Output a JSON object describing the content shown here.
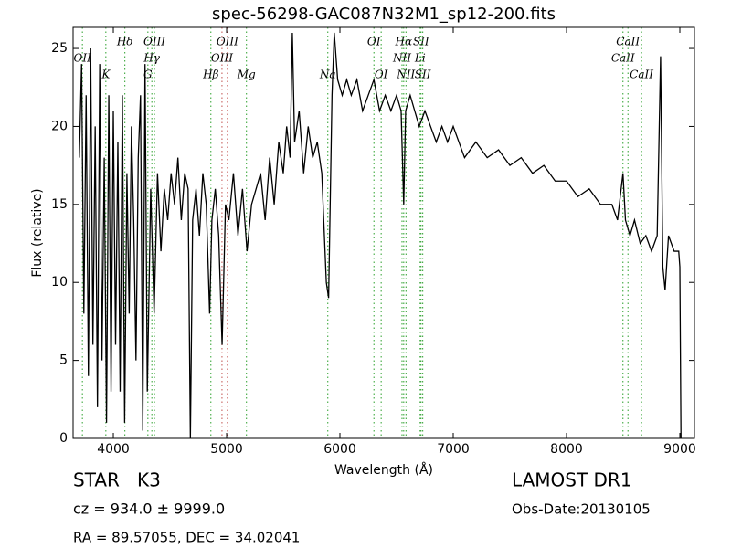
{
  "chart_data": {
    "type": "line",
    "title": "spec-56298-GAC087N32M1_sp12-200.fits",
    "xlabel": "Wavelength (Å)",
    "ylabel": "Flux (relative)",
    "xlim": [
      3645,
      9129
    ],
    "ylim": [
      0,
      26.35
    ],
    "xticks": [
      4000,
      5000,
      6000,
      7000,
      8000,
      9000
    ],
    "yticks": [
      0,
      5,
      10,
      15,
      20,
      25
    ],
    "series": [
      {
        "color": "#000000",
        "x": [
          3700,
          3720,
          3740,
          3760,
          3780,
          3800,
          3820,
          3840,
          3860,
          3880,
          3900,
          3920,
          3940,
          3960,
          3980,
          4000,
          4020,
          4040,
          4060,
          4080,
          4100,
          4120,
          4140,
          4160,
          4180,
          4200,
          4220,
          4240,
          4260,
          4280,
          4300,
          4330,
          4360,
          4390,
          4420,
          4450,
          4480,
          4510,
          4540,
          4570,
          4600,
          4630,
          4660,
          4680,
          4700,
          4730,
          4760,
          4790,
          4820,
          4850,
          4870,
          4900,
          4930,
          4960,
          4990,
          5020,
          5060,
          5100,
          5140,
          5180,
          5220,
          5260,
          5300,
          5340,
          5380,
          5420,
          5460,
          5500,
          5530,
          5560,
          5580,
          5600,
          5640,
          5680,
          5720,
          5760,
          5800,
          5840,
          5880,
          5900,
          5930,
          5950,
          5980,
          6020,
          6060,
          6100,
          6150,
          6200,
          6250,
          6300,
          6350,
          6400,
          6450,
          6500,
          6540,
          6563,
          6580,
          6620,
          6660,
          6700,
          6750,
          6800,
          6850,
          6900,
          6950,
          7000,
          7100,
          7200,
          7300,
          7400,
          7500,
          7600,
          7700,
          7800,
          7900,
          8000,
          8100,
          8200,
          8300,
          8400,
          8450,
          8498,
          8520,
          8560,
          8600,
          8650,
          8700,
          8750,
          8800,
          8830,
          8850,
          8870,
          8900,
          8950,
          8990,
          9000,
          9010
        ],
        "values": [
          18,
          24,
          8,
          22,
          4,
          25,
          6,
          20,
          2,
          24,
          5,
          18,
          1,
          22,
          3,
          21,
          6,
          19,
          3,
          22,
          1,
          17,
          8,
          20,
          14,
          5,
          18,
          22,
          0.5,
          24,
          3,
          16,
          8,
          17,
          12,
          16,
          14,
          17,
          15,
          18,
          14,
          17,
          16,
          0,
          14,
          16,
          13,
          17,
          15,
          8,
          14,
          16,
          13,
          6,
          15,
          14,
          17,
          13,
          16,
          12,
          15,
          16,
          17,
          14,
          18,
          15,
          19,
          17,
          20,
          18,
          26,
          19,
          21,
          17,
          20,
          18,
          19,
          17,
          10,
          9,
          22,
          26,
          23,
          22,
          23,
          22,
          23,
          21,
          22,
          23,
          21,
          22,
          21,
          22,
          21,
          15,
          21,
          22,
          21,
          20,
          21,
          20,
          19,
          20,
          19,
          20,
          18,
          19,
          18,
          18.5,
          17.5,
          18,
          17,
          17.5,
          16.5,
          16.5,
          15.5,
          16,
          15,
          15,
          14,
          17,
          14,
          13,
          14,
          12.5,
          13,
          12,
          13,
          24.5,
          11,
          9.5,
          13,
          12,
          12,
          11,
          0
        ]
      }
    ],
    "lines": [
      {
        "wavelength": 3727,
        "label": "OII",
        "row": 1,
        "color": "#2ca02c"
      },
      {
        "wavelength": 3934,
        "label": "K",
        "row": 2,
        "color": "#2ca02c"
      },
      {
        "wavelength": 4102,
        "label": "Hδ",
        "row": 0,
        "color": "#2ca02c"
      },
      {
        "wavelength": 4305,
        "label": "G",
        "row": 2,
        "color": "#2ca02c"
      },
      {
        "wavelength": 4340,
        "label": "Hγ",
        "row": 1,
        "color": "#2ca02c"
      },
      {
        "wavelength": 4363,
        "label": "OIII",
        "row": 0,
        "color": "#2ca02c"
      },
      {
        "wavelength": 4861,
        "label": "Hβ",
        "row": 2,
        "color": "#2ca02c"
      },
      {
        "wavelength": 4959,
        "label": "OIII",
        "row": 1,
        "color": "#c0504d"
      },
      {
        "wavelength": 5007,
        "label": "OIII",
        "row": 0,
        "color": "#c0504d"
      },
      {
        "wavelength": 5175,
        "label": "Mg",
        "row": 2,
        "color": "#2ca02c"
      },
      {
        "wavelength": 5893,
        "label": "Na",
        "row": 2,
        "color": "#2ca02c"
      },
      {
        "wavelength": 6300,
        "label": "OI",
        "row": 0,
        "color": "#2ca02c"
      },
      {
        "wavelength": 6364,
        "label": "OI",
        "row": 2,
        "color": "#2ca02c"
      },
      {
        "wavelength": 6548,
        "label": "NII",
        "row": 1,
        "color": "#2ca02c"
      },
      {
        "wavelength": 6563,
        "label": "Hα",
        "row": 0,
        "color": "#2ca02c"
      },
      {
        "wavelength": 6583,
        "label": "NII",
        "row": 2,
        "color": "#2ca02c"
      },
      {
        "wavelength": 6708,
        "label": "Li",
        "row": 1,
        "color": "#2ca02c"
      },
      {
        "wavelength": 6716,
        "label": "SII",
        "row": 0,
        "color": "#2ca02c"
      },
      {
        "wavelength": 6731,
        "label": "SII",
        "row": 2,
        "color": "#2ca02c"
      },
      {
        "wavelength": 8498,
        "label": "CaII",
        "row": 1,
        "color": "#2ca02c"
      },
      {
        "wavelength": 8542,
        "label": "CaII",
        "row": 0,
        "color": "#2ca02c"
      },
      {
        "wavelength": 8662,
        "label": "CaII",
        "row": 2,
        "color": "#2ca02c"
      }
    ],
    "annotations": {
      "class": "STAR   K3",
      "cz": "cz = 934.0 ± 9999.0",
      "coords": "RA = 89.57055, DEC = 34.02041",
      "survey": "LAMOST DR1",
      "obs_date": "Obs-Date:20130105"
    }
  }
}
